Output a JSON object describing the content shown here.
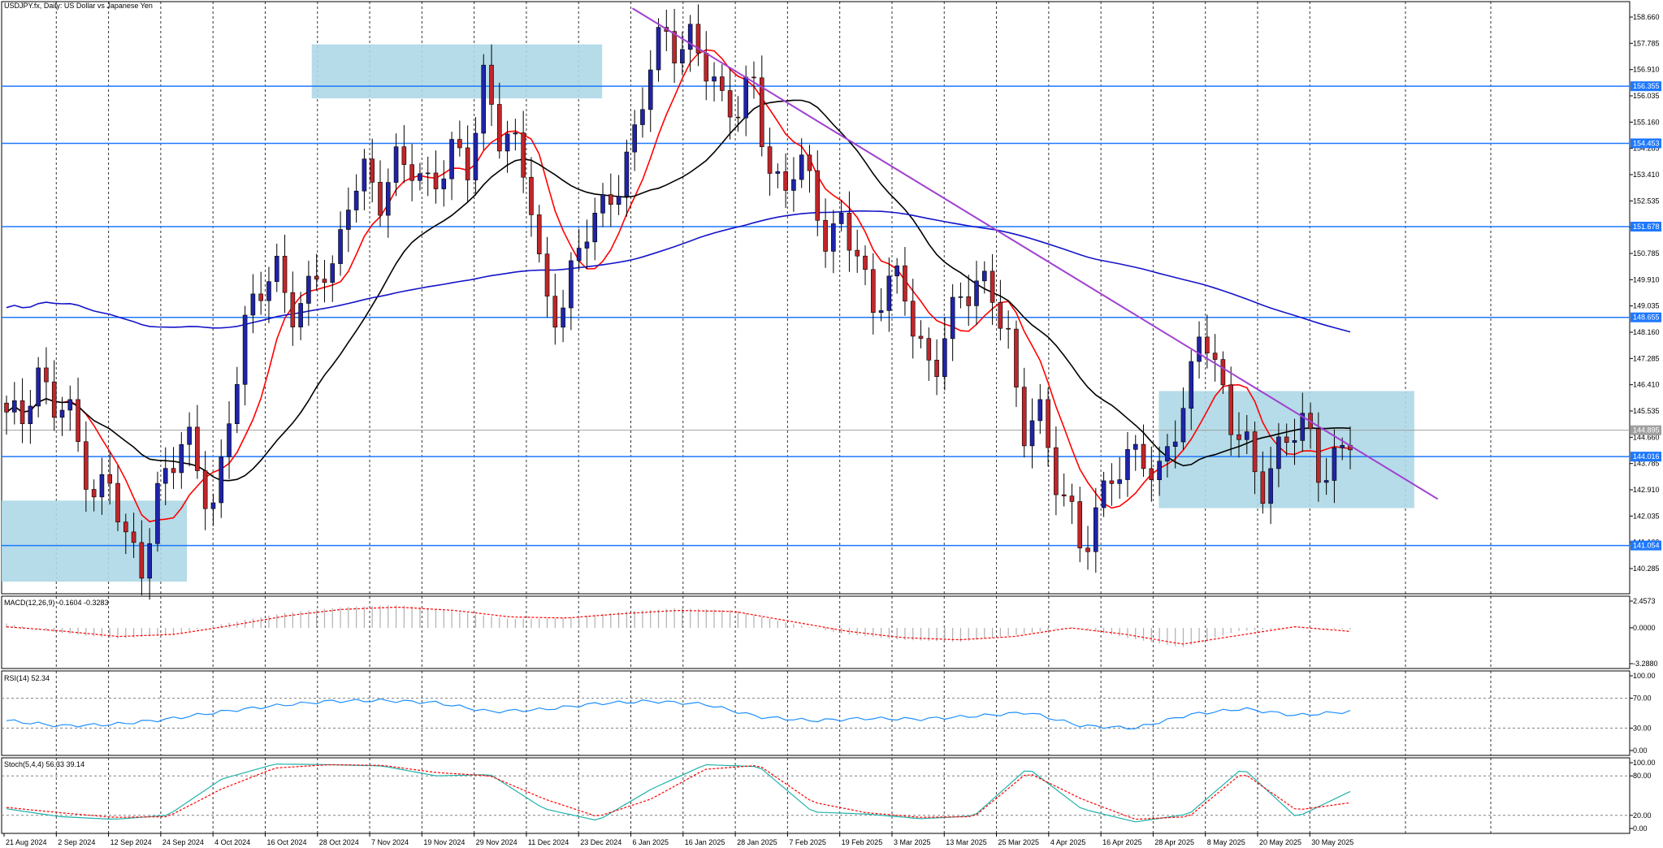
{
  "window": {
    "title": "USDJPY.fx, Daily:  US Dollar vs Japanese Yen"
  },
  "colors": {
    "bull": "#1f24a8",
    "bear": "#c0262a",
    "ma_fast": "#ff0000",
    "ma_mid": "#000000",
    "ma_slow": "#1414c8",
    "level": "#1e78ff",
    "zone": "#add8e6",
    "trendline": "#a040d0",
    "grid": "#000000",
    "current": "#a0a0a0"
  },
  "chart_data": [
    {
      "type": "line",
      "title": "USDJPY.fx, Daily:  US Dollar vs Japanese Yen",
      "ylim": [
        139.6,
        159.05
      ],
      "yticks": [
        "158.660",
        "157.785",
        "156.910",
        "156.035",
        "155.160",
        "154.285",
        "153.410",
        "152.535",
        "151.660",
        "150.785",
        "149.910",
        "149.035",
        "148.160",
        "147.285",
        "146.410",
        "145.535",
        "144.660",
        "143.785",
        "142.910",
        "142.035",
        "141.160",
        "140.285"
      ],
      "xticks": [
        "21 Aug 2024",
        "2 Sep 2024",
        "12 Sep 2024",
        "24 Sep 2024",
        "4 Oct 2024",
        "16 Oct 2024",
        "28 Oct 2024",
        "7 Nov 2024",
        "19 Nov 2024",
        "29 Nov 2024",
        "11 Dec 2024",
        "23 Dec 2024",
        "6 Jan 2025",
        "16 Jan 2025",
        "28 Jan 2025",
        "7 Feb 2025",
        "19 Feb 2025",
        "3 Mar 2025",
        "13 Mar 2025",
        "25 Mar 2025",
        "4 Apr 2025",
        "16 Apr 2025",
        "28 Apr 2025",
        "8 May 2025",
        "20 May 2025",
        "30 May 2025"
      ],
      "levels": [
        {
          "label": "156.355",
          "value": 156.355
        },
        {
          "label": "154.453",
          "value": 154.453
        },
        {
          "label": "151.678",
          "value": 151.678
        },
        {
          "label": "148.655",
          "value": 148.655
        },
        {
          "label": "144.016",
          "value": 144.016
        },
        {
          "label": "141.054",
          "value": 141.054
        }
      ],
      "current_price": {
        "label": "144.895",
        "value": 144.895
      },
      "trendline": {
        "start": {
          "date": "6 Jan 2025",
          "value": 158.95
        },
        "end": {
          "value": 142.6
        }
      },
      "zones": [
        {
          "from": "21 Aug 2024",
          "to": "1 Oct 2024",
          "low": 139.85,
          "high": 142.55
        },
        {
          "from": "28 Oct 2024",
          "to": "30 Dec 2024",
          "low": 155.95,
          "high": 157.75
        },
        {
          "from": "28 Apr 2025",
          "to": "12 Jun 2025",
          "low": 142.3,
          "high": 146.2
        }
      ],
      "moving_averages": [
        "fast (red)",
        "mid (black)",
        "slow (blue)"
      ],
      "price_path": [
        145.5,
        144.8,
        146.6,
        145.8,
        146.4,
        144.0,
        142.3,
        142.9,
        141.3,
        140.5,
        142.8,
        143.6,
        144.5,
        143.0,
        142.5,
        146.0,
        148.4,
        149.3,
        150.1,
        149.0,
        149.6,
        150.5,
        149.8,
        152.6,
        153.5,
        152.9,
        154.0,
        153.7,
        152.5,
        153.3,
        154.6,
        154.0,
        156.6,
        154.4,
        154.2,
        153.3,
        149.5,
        148.8,
        150.0,
        151.6,
        152.3,
        153.5,
        154.7,
        156.8,
        157.8,
        157.4,
        158.3,
        157.2,
        155.6,
        155.3,
        156.4,
        153.9,
        153.0,
        154.3,
        152.4,
        150.7,
        152.0,
        151.2,
        148.9,
        149.7,
        149.4,
        147.9,
        146.9,
        148.8,
        149.2,
        149.5,
        149.2,
        148.6,
        144.9,
        146.0,
        143.2,
        142.3,
        141.0,
        142.5,
        143.6,
        143.5,
        144.0,
        142.9,
        145.2,
        145.9,
        148.5,
        146.4,
        145.1,
        144.7,
        143.2,
        143.9,
        144.6,
        144.9,
        143.5,
        144.2,
        144.9
      ]
    },
    {
      "type": "bar",
      "title": "MACD(12,26,9) -0.1604 -0.3283",
      "yticks": [
        "2.4573",
        "0.0000",
        "-3.2880"
      ],
      "ylim": [
        -3.288,
        2.4573
      ],
      "macd_path": [
        0.4,
        -0.5,
        -1.0,
        -0.6,
        0.5,
        1.4,
        1.9,
        2.1,
        1.5,
        0.8,
        0.9,
        1.5,
        1.8,
        1.6,
        0.4,
        -0.6,
        -1.1,
        -1.3,
        -0.7,
        0.1,
        -0.9,
        -1.8,
        -0.3,
        0.0,
        -0.16
      ],
      "signal_path": [
        0.1,
        -0.3,
        -0.8,
        -0.6,
        0.2,
        1.1,
        1.7,
        1.9,
        1.6,
        1.0,
        0.9,
        1.3,
        1.6,
        1.5,
        0.6,
        -0.3,
        -0.9,
        -1.1,
        -0.8,
        0.0,
        -0.6,
        -1.5,
        -0.7,
        0.1,
        -0.33
      ]
    },
    {
      "type": "line",
      "title": "RSI(14) 52.34",
      "yticks": [
        "100.00",
        "70.00",
        "30.00",
        "0.00"
      ],
      "ylim": [
        0,
        100
      ],
      "levels": [
        70,
        30
      ],
      "values": [
        40,
        33,
        35,
        42,
        52,
        60,
        66,
        67,
        64,
        52,
        55,
        63,
        66,
        62,
        45,
        40,
        43,
        42,
        46,
        51,
        33,
        30,
        48,
        56,
        47,
        52.34
      ]
    },
    {
      "type": "line",
      "title": "Stoch(5,4,4) 56.33 39.14",
      "yticks": [
        "100.00",
        "80.00",
        "20.00",
        "0.00"
      ],
      "ylim": [
        0,
        100
      ],
      "levels": [
        80,
        20
      ],
      "k_values": [
        30,
        18,
        14,
        20,
        75,
        98,
        97,
        95,
        80,
        82,
        30,
        12,
        60,
        97,
        94,
        25,
        22,
        15,
        19,
        92,
        30,
        10,
        22,
        92,
        17,
        56.33
      ],
      "d_values": [
        32,
        24,
        17,
        18,
        60,
        92,
        97,
        96,
        85,
        80,
        45,
        18,
        45,
        90,
        96,
        40,
        24,
        17,
        18,
        85,
        45,
        14,
        18,
        85,
        28,
        39.14
      ]
    }
  ]
}
